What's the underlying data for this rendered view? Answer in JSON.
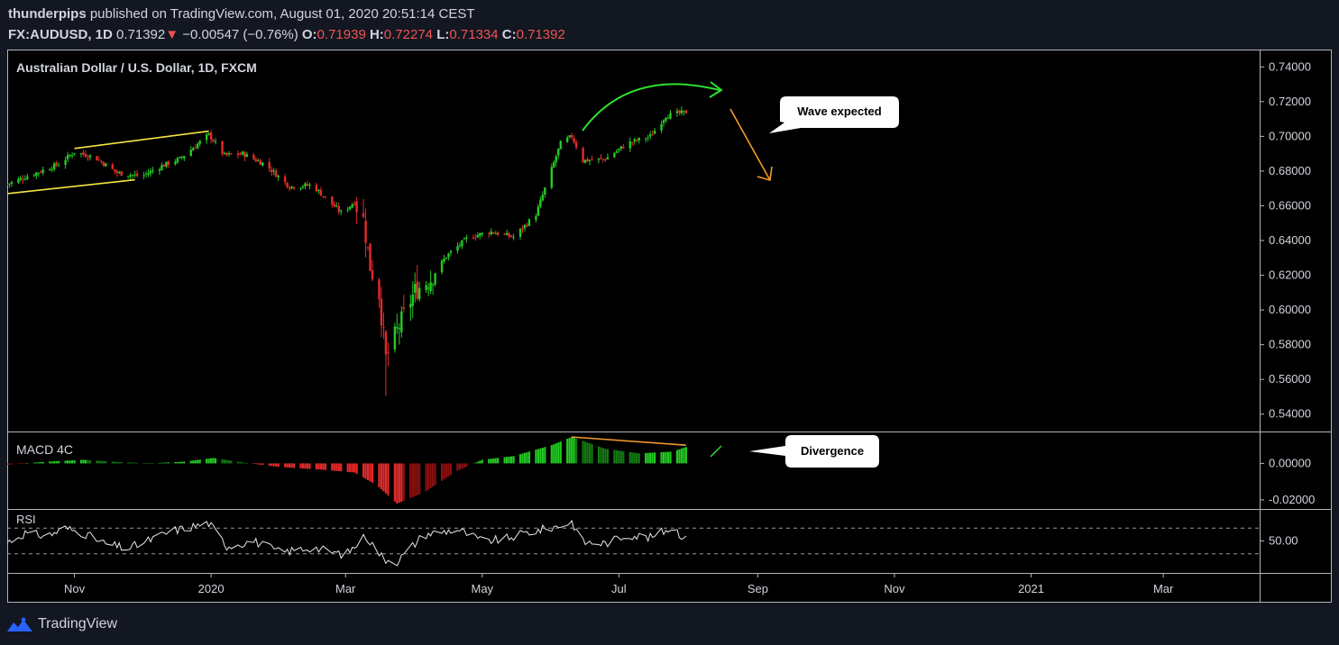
{
  "header": {
    "author": "thunderpips",
    "published_text": "published on TradingView.com, August 01, 2020 20:51:14 CEST",
    "symbol": "FX:AUDUSD, 1D",
    "last": "0.71392",
    "change_arrow": "▼",
    "change": "−0.00547 (−0.76%)",
    "o_label": "O:",
    "o_val": "0.71939",
    "h_label": "H:",
    "h_val": "0.72274",
    "l_label": "L:",
    "l_val": "0.71334",
    "c_label": "C:",
    "c_val": "0.71392"
  },
  "footer": {
    "brand": "TradingView",
    "logo_icon": "tradingview-logo-icon"
  },
  "colors": {
    "background": "#000000",
    "page": "#131722",
    "border": "#b2b5be",
    "up": "#26c926",
    "down": "#e52a2a",
    "yellow": "#f5e642",
    "orange": "#f39a2c",
    "green_arrow": "#2fe02f",
    "text": "#d1d4dc",
    "white": "#ffffff"
  },
  "chart_data": [
    {
      "type": "candlestick",
      "title": "Australian Dollar / U.S. Dollar, 1D, FXCM",
      "ylim": [
        0.53,
        0.75
      ],
      "y_ticks": [
        "0.74000",
        "0.72000",
        "0.70000",
        "0.68000",
        "0.66000",
        "0.64000",
        "0.62000",
        "0.60000",
        "0.58000",
        "0.56000",
        "0.54000"
      ],
      "y_tick_values": [
        0.74,
        0.72,
        0.7,
        0.68,
        0.66,
        0.64,
        0.62,
        0.6,
        0.58,
        0.56,
        0.54
      ],
      "x_ticks": [
        "Nov",
        "2020",
        "Mar",
        "May",
        "Jul",
        "Sep",
        "Nov",
        "2021",
        "Mar"
      ],
      "x_tick_dates": [
        "2019-11-01",
        "2020-01-01",
        "2020-03-01",
        "2020-05-01",
        "2020-07-01",
        "2020-09-01",
        "2020-11-01",
        "2021-01-01",
        "2021-03-01"
      ],
      "x_range": [
        "2019-10-02",
        "2021-04-13"
      ],
      "close_path": [
        [
          "2019-10-02",
          0.6725
        ],
        [
          "2019-10-15",
          0.679
        ],
        [
          "2019-10-25",
          0.684
        ],
        [
          "2019-11-01",
          0.691
        ],
        [
          "2019-11-10",
          0.688
        ],
        [
          "2019-11-20",
          0.679
        ],
        [
          "2019-12-01",
          0.677
        ],
        [
          "2019-12-10",
          0.683
        ],
        [
          "2019-12-18",
          0.687
        ],
        [
          "2019-12-31",
          0.701
        ],
        [
          "2020-01-07",
          0.689
        ],
        [
          "2020-01-15",
          0.69
        ],
        [
          "2020-01-25",
          0.684
        ],
        [
          "2020-02-05",
          0.671
        ],
        [
          "2020-02-15",
          0.672
        ],
        [
          "2020-02-28",
          0.656
        ],
        [
          "2020-03-05",
          0.662
        ],
        [
          "2020-03-09",
          0.652
        ],
        [
          "2020-03-12",
          0.625
        ],
        [
          "2020-03-16",
          0.609
        ],
        [
          "2020-03-19",
          0.572
        ],
        [
          "2020-03-24",
          0.588
        ],
        [
          "2020-04-01",
          0.611
        ],
        [
          "2020-04-08",
          0.618
        ],
        [
          "2020-04-15",
          0.631
        ],
        [
          "2020-04-25",
          0.642
        ],
        [
          "2020-05-05",
          0.645
        ],
        [
          "2020-05-15",
          0.642
        ],
        [
          "2020-05-25",
          0.655
        ],
        [
          "2020-06-05",
          0.696
        ],
        [
          "2020-06-10",
          0.7
        ],
        [
          "2020-06-15",
          0.686
        ],
        [
          "2020-06-25",
          0.687
        ],
        [
          "2020-07-05",
          0.696
        ],
        [
          "2020-07-15",
          0.7
        ],
        [
          "2020-07-22",
          0.712
        ],
        [
          "2020-07-31",
          0.7139
        ]
      ],
      "trendlines": [
        {
          "color": "yellow",
          "from": [
            "2019-11-01",
            0.693
          ],
          "to": [
            "2019-12-31",
            0.703
          ]
        },
        {
          "color": "yellow",
          "from": [
            "2019-10-02",
            0.667
          ],
          "to": [
            "2019-11-28",
            0.675
          ]
        }
      ],
      "annotations": [
        {
          "text": "Wave expected",
          "type": "callout"
        }
      ]
    },
    {
      "type": "bar",
      "title": "MACD 4C",
      "ylim": [
        -0.025,
        0.0175
      ],
      "y_ticks": [
        "0.00000",
        "-0.02000"
      ],
      "y_tick_values": [
        0.0,
        -0.02
      ],
      "values_path": [
        [
          "2019-10-02",
          -0.0008
        ],
        [
          "2019-10-20",
          0.001
        ],
        [
          "2019-11-05",
          0.002
        ],
        [
          "2019-11-20",
          0.0008
        ],
        [
          "2019-12-05",
          0.0
        ],
        [
          "2019-12-20",
          0.001
        ],
        [
          "2020-01-02",
          0.003
        ],
        [
          "2020-01-15",
          0.0005
        ],
        [
          "2020-02-01",
          -0.002
        ],
        [
          "2020-02-20",
          -0.0035
        ],
        [
          "2020-03-05",
          -0.005
        ],
        [
          "2020-03-15",
          -0.012
        ],
        [
          "2020-03-24",
          -0.022
        ],
        [
          "2020-04-05",
          -0.016
        ],
        [
          "2020-04-20",
          -0.004
        ],
        [
          "2020-05-01",
          0.002
        ],
        [
          "2020-05-15",
          0.004
        ],
        [
          "2020-06-01",
          0.01
        ],
        [
          "2020-06-10",
          0.0145
        ],
        [
          "2020-06-25",
          0.008
        ],
        [
          "2020-07-10",
          0.0055
        ],
        [
          "2020-07-25",
          0.0065
        ],
        [
          "2020-07-31",
          0.009
        ]
      ],
      "divergence_line": {
        "from": [
          "2020-06-10",
          0.0145
        ],
        "to": [
          "2020-07-31",
          0.01
        ]
      },
      "annotations": [
        {
          "text": "Divergence",
          "type": "callout"
        }
      ]
    },
    {
      "type": "line",
      "title": "RSI",
      "ylim": [
        0,
        100
      ],
      "y_ticks": [
        "50.00"
      ],
      "y_tick_values": [
        50
      ],
      "bands": [
        70,
        30
      ],
      "values_path": [
        [
          "2019-10-02",
          48
        ],
        [
          "2019-10-10",
          62
        ],
        [
          "2019-10-20",
          58
        ],
        [
          "2019-10-28",
          70
        ],
        [
          "2019-11-05",
          62
        ],
        [
          "2019-11-15",
          45
        ],
        [
          "2019-11-25",
          38
        ],
        [
          "2019-12-05",
          52
        ],
        [
          "2019-12-15",
          66
        ],
        [
          "2019-12-31",
          78
        ],
        [
          "2020-01-08",
          42
        ],
        [
          "2020-01-20",
          50
        ],
        [
          "2020-02-01",
          32
        ],
        [
          "2020-02-15",
          40
        ],
        [
          "2020-03-01",
          28
        ],
        [
          "2020-03-10",
          58
        ],
        [
          "2020-03-18",
          22
        ],
        [
          "2020-03-24",
          18
        ],
        [
          "2020-04-05",
          60
        ],
        [
          "2020-04-20",
          68
        ],
        [
          "2020-05-01",
          50
        ],
        [
          "2020-05-10",
          52
        ],
        [
          "2020-05-20",
          62
        ],
        [
          "2020-06-05",
          74
        ],
        [
          "2020-06-10",
          80
        ],
        [
          "2020-06-15",
          48
        ],
        [
          "2020-06-25",
          46
        ],
        [
          "2020-07-05",
          60
        ],
        [
          "2020-07-15",
          55
        ],
        [
          "2020-07-25",
          72
        ],
        [
          "2020-07-31",
          52
        ]
      ]
    }
  ]
}
